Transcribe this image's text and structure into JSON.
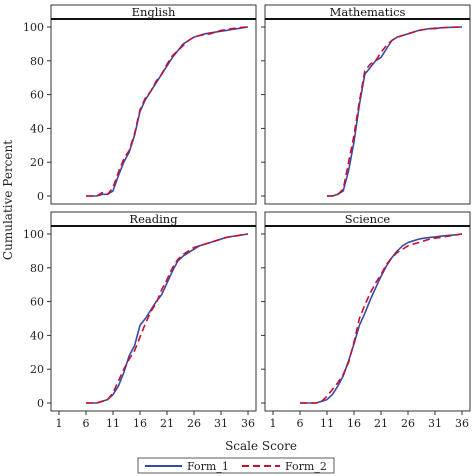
{
  "chart_data": {
    "type": "line",
    "xlabel": "Scale Score",
    "ylabel": "Cumulative Percent",
    "xlim": [
      1,
      36
    ],
    "ylim": [
      0,
      100
    ],
    "xticks": [
      1,
      6,
      11,
      16,
      21,
      26,
      31,
      36
    ],
    "yticks": [
      0,
      20,
      40,
      60,
      80,
      100
    ],
    "legend": {
      "placement": "bottom-center",
      "entries": [
        {
          "name": "Form_1",
          "color": "#3a49a8",
          "style": "solid"
        },
        {
          "name": "Form_2",
          "color": "#c8102e",
          "style": "dashed"
        }
      ]
    },
    "panels": [
      {
        "title": "English",
        "series": [
          {
            "name": "Form_1",
            "x": [
              6,
              7,
              8,
              9,
              10,
              11,
              12,
              13,
              14,
              15,
              16,
              17,
              18,
              19,
              20,
              21,
              22,
              23,
              24,
              25,
              26,
              27,
              28,
              29,
              30,
              31,
              32,
              33,
              34,
              35,
              36
            ],
            "values": [
              0,
              0,
              0,
              1,
              1,
              3,
              12,
              20,
              26,
              36,
              50,
              57,
              62,
              67,
              72,
              77,
              82,
              86,
              90,
              92,
              94,
              95,
              96,
              96.5,
              97,
              97.5,
              98,
              98.5,
              99,
              99.5,
              100
            ]
          },
          {
            "name": "Form_2",
            "x": [
              6,
              7,
              8,
              9,
              10,
              11,
              12,
              13,
              14,
              15,
              16,
              17,
              18,
              19,
              20,
              21,
              22,
              23,
              24,
              25,
              26,
              27,
              28,
              29,
              30,
              31,
              32,
              33,
              34,
              35,
              36
            ],
            "values": [
              0,
              0,
              0,
              2,
              1,
              5,
              14,
              22,
              27,
              37,
              51,
              58,
              62,
              68,
              72,
              78,
              83,
              86,
              89,
              92,
              94,
              95,
              95.5,
              96,
              97,
              98,
              98.5,
              99,
              99.5,
              99.8,
              100
            ]
          }
        ]
      },
      {
        "title": "Mathematics",
        "series": [
          {
            "name": "Form_1",
            "x": [
              11,
              12,
              13,
              14,
              15,
              16,
              17,
              18,
              19,
              20,
              21,
              22,
              23,
              24,
              25,
              26,
              27,
              28,
              29,
              30,
              31,
              32,
              33,
              34,
              35,
              36
            ],
            "values": [
              0,
              0,
              1,
              3,
              15,
              32,
              54,
              72,
              76,
              80,
              82,
              87,
              92,
              94,
              95,
              96,
              97,
              98,
              98.5,
              99,
              99,
              99.5,
              99.7,
              99.8,
              99.9,
              100
            ]
          },
          {
            "name": "Form_2",
            "x": [
              11,
              12,
              13,
              14,
              15,
              16,
              17,
              18,
              19,
              20,
              21,
              22,
              23,
              24,
              25,
              26,
              27,
              28,
              29,
              30,
              31,
              32,
              33,
              34,
              35,
              36
            ],
            "values": [
              0,
              0,
              1,
              4,
              20,
              36,
              56,
              74,
              78,
              80,
              85,
              89,
              92,
              94,
              95,
              96,
              97,
              98,
              98.5,
              99,
              99.3,
              99.5,
              99.7,
              99.8,
              99.9,
              100
            ]
          }
        ]
      },
      {
        "title": "Reading",
        "series": [
          {
            "name": "Form_1",
            "x": [
              6,
              7,
              8,
              9,
              10,
              11,
              12,
              13,
              14,
              15,
              16,
              17,
              18,
              19,
              20,
              21,
              22,
              23,
              24,
              25,
              26,
              27,
              28,
              29,
              30,
              31,
              32,
              33,
              34,
              35,
              36
            ],
            "values": [
              0,
              0,
              0,
              1,
              2,
              5,
              10,
              18,
              28,
              34,
              46,
              50,
              55,
              60,
              64,
              71,
              78,
              84,
              87,
              89,
              91,
              93,
              94,
              95,
              96,
              97,
              98,
              98.5,
              99,
              99.5,
              100
            ]
          },
          {
            "name": "Form_2",
            "x": [
              6,
              7,
              8,
              9,
              10,
              11,
              12,
              13,
              14,
              15,
              16,
              17,
              18,
              19,
              20,
              21,
              22,
              23,
              24,
              25,
              26,
              27,
              28,
              29,
              30,
              31,
              32,
              33,
              34,
              35,
              36
            ],
            "values": [
              0,
              0,
              0,
              1,
              2,
              6,
              13,
              20,
              26,
              31,
              39,
              47,
              54,
              59,
              67,
              73,
              80,
              85,
              88,
              90,
              92,
              93,
              94,
              95,
              96,
              97,
              98,
              98.5,
              99,
              99.5,
              100
            ]
          }
        ]
      },
      {
        "title": "Science",
        "series": [
          {
            "name": "Form_1",
            "x": [
              6,
              7,
              8,
              9,
              10,
              11,
              12,
              13,
              14,
              15,
              16,
              17,
              18,
              19,
              20,
              21,
              22,
              23,
              24,
              25,
              26,
              27,
              28,
              29,
              30,
              31,
              32,
              33,
              34,
              35,
              36
            ],
            "values": [
              0,
              0,
              0,
              0,
              1,
              2,
              5,
              10,
              16,
              25,
              35,
              46,
              53,
              61,
              68,
              75,
              81,
              86,
              90,
              93,
              95,
              96,
              97,
              97.5,
              98,
              98.3,
              98.7,
              99,
              99.3,
              99.6,
              100
            ]
          },
          {
            "name": "Form_2",
            "x": [
              6,
              7,
              8,
              9,
              10,
              11,
              12,
              13,
              14,
              15,
              16,
              17,
              18,
              19,
              20,
              21,
              22,
              23,
              24,
              25,
              26,
              27,
              28,
              29,
              30,
              31,
              32,
              33,
              34,
              35,
              36
            ],
            "values": [
              0,
              0,
              0,
              0,
              1,
              4,
              8,
              12,
              17,
              24,
              36,
              50,
              58,
              65,
              71,
              76,
              82,
              86,
              89,
              91,
              93,
              94,
              95,
              96,
              97,
              97.5,
              98,
              98.5,
              99,
              99.5,
              100
            ]
          }
        ]
      }
    ]
  }
}
